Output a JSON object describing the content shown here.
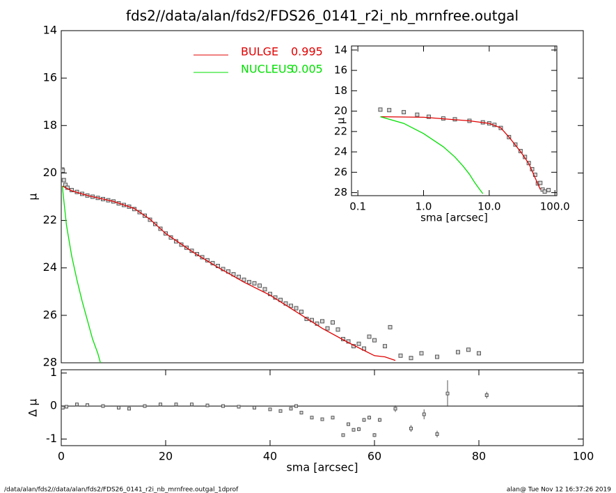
{
  "title": "fds2//data/alan/fds2/FDS26_0141_r2i_nb_mrnfree.outgal",
  "footer_left": "/data/alan/fds2//data/alan/fds2/FDS26_0141_r2i_nb_mrnfree.outgal_1dprof",
  "footer_right": "alan@  Tue Nov 12 16:37:26 2019",
  "chart_data": [
    {
      "type": "profile",
      "ylabel": "μ",
      "xlim": [
        0,
        100
      ],
      "ylim": [
        28,
        14
      ],
      "yticks": [
        14,
        16,
        18,
        20,
        22,
        24,
        26,
        28
      ],
      "legend": "upper center",
      "series": [
        {
          "style": "markers",
          "color": "#555555",
          "x": [
            0.2,
            0.3,
            0.5,
            0.8,
            1.2,
            2,
            3,
            4,
            5,
            6,
            7,
            8,
            9,
            10,
            11,
            12,
            13,
            14,
            15,
            16,
            17,
            18,
            19,
            20,
            21,
            22,
            23,
            24,
            25,
            26,
            27,
            28,
            29,
            30,
            31,
            32,
            33,
            34,
            35,
            36,
            37,
            38,
            39,
            40,
            41,
            42,
            43,
            44,
            45,
            46,
            47,
            48,
            49,
            50,
            51,
            52,
            53,
            54,
            55,
            56,
            57,
            58,
            59,
            60,
            62,
            63,
            65,
            67,
            69,
            72,
            76,
            78,
            80
          ],
          "values": [
            19.85,
            19.9,
            20.3,
            20.5,
            20.62,
            20.72,
            20.8,
            20.88,
            20.95,
            21.0,
            21.05,
            21.1,
            21.15,
            21.2,
            21.28,
            21.35,
            21.42,
            21.52,
            21.65,
            21.8,
            21.97,
            22.15,
            22.35,
            22.55,
            22.72,
            22.88,
            23.02,
            23.15,
            23.28,
            23.42,
            23.55,
            23.68,
            23.8,
            23.92,
            24.05,
            24.15,
            24.27,
            24.38,
            24.5,
            24.6,
            24.65,
            24.75,
            24.9,
            25.1,
            25.25,
            25.35,
            25.5,
            25.6,
            25.7,
            25.85,
            26.15,
            26.2,
            26.35,
            26.25,
            26.55,
            26.3,
            26.6,
            27.0,
            27.1,
            27.3,
            27.2,
            27.4,
            26.9,
            27.05,
            27.3,
            26.5,
            27.7,
            27.8,
            27.6,
            27.75,
            27.55,
            27.45,
            27.6
          ]
        },
        {
          "name": "BULGE",
          "fraction": 0.995,
          "style": "line",
          "color": "#e00000",
          "x": [
            0.2,
            2,
            5,
            10,
            14,
            17,
            20,
            25,
            30,
            35,
            40,
            45,
            50,
            55,
            60,
            62,
            64
          ],
          "values": [
            20.55,
            20.75,
            20.95,
            21.2,
            21.5,
            21.95,
            22.55,
            23.3,
            23.98,
            24.6,
            25.15,
            25.85,
            26.55,
            27.15,
            27.7,
            27.75,
            27.9
          ]
        },
        {
          "name": "NUCLEUS",
          "fraction": 0.005,
          "style": "line",
          "color": "#00e000",
          "x": [
            0.2,
            1,
            2,
            3,
            4,
            5,
            6,
            7,
            7.5
          ],
          "values": [
            20.55,
            22.2,
            23.5,
            24.5,
            25.4,
            26.2,
            27.0,
            27.6,
            28.0
          ]
        }
      ]
    },
    {
      "type": "residual",
      "ylabel": "Δ μ",
      "xlabel": "sma [arcsec]",
      "xlim": [
        0,
        100
      ],
      "ylim": [
        -1.2,
        1.1
      ],
      "xticks": [
        0,
        20,
        40,
        60,
        80,
        100
      ],
      "yticks": [
        -1,
        0,
        1
      ],
      "series": [
        {
          "style": "errorbars",
          "color": "#555555",
          "x": [
            0.3,
            1,
            3,
            5,
            8,
            11,
            13,
            16,
            19,
            22,
            25,
            28,
            31,
            34,
            37,
            40,
            42,
            44,
            45,
            46,
            48,
            50,
            52,
            54,
            55,
            56,
            57,
            58,
            59,
            60,
            61,
            64,
            67,
            69.5,
            72,
            74,
            81.5
          ],
          "values": [
            -0.05,
            -0.02,
            0.05,
            0.03,
            0.0,
            -0.05,
            -0.08,
            0.0,
            0.05,
            0.05,
            0.05,
            0.02,
            0.0,
            -0.02,
            -0.05,
            -0.1,
            -0.15,
            -0.08,
            0.0,
            -0.2,
            -0.35,
            -0.4,
            -0.35,
            -0.88,
            -0.55,
            -0.72,
            -0.7,
            -0.42,
            -0.35,
            -0.88,
            -0.42,
            -0.08,
            -0.68,
            -0.25,
            -0.85,
            0.38,
            0.33
          ],
          "errors": [
            0.02,
            0.02,
            0.02,
            0.02,
            0.02,
            0.02,
            0.02,
            0.02,
            0.02,
            0.02,
            0.02,
            0.02,
            0.02,
            0.02,
            0.02,
            0.03,
            0.03,
            0.03,
            0.03,
            0.03,
            0.04,
            0.04,
            0.05,
            0.05,
            0.05,
            0.05,
            0.06,
            0.06,
            0.06,
            0.06,
            0.06,
            0.1,
            0.1,
            0.15,
            0.1,
            0.4,
            0.1
          ]
        }
      ]
    },
    {
      "type": "profile",
      "ylabel": "μ",
      "xlabel": "sma [arcsec]",
      "xscale": "log",
      "xlim": [
        0.08,
        107
      ],
      "ylim": [
        28.3,
        13.6
      ],
      "xticks": [
        {
          "value": 0.1,
          "label": "0.1"
        },
        {
          "value": 1,
          "label": "1.0"
        },
        {
          "value": 10,
          "label": "10.0"
        },
        {
          "value": 100,
          "label": "100.0"
        }
      ],
      "yticks": [
        14,
        16,
        18,
        20,
        22,
        24,
        26,
        28
      ],
      "series": [
        {
          "style": "markers",
          "color": "#555555",
          "x": [
            0.22,
            0.3,
            0.5,
            0.8,
            1.2,
            2,
            3,
            5,
            8,
            10,
            12,
            15,
            20,
            25,
            30,
            35,
            40,
            45,
            50,
            55,
            60,
            65,
            70,
            80
          ],
          "values": [
            19.85,
            19.9,
            20.1,
            20.35,
            20.55,
            20.72,
            20.8,
            20.95,
            21.1,
            21.2,
            21.35,
            21.65,
            22.55,
            23.28,
            23.92,
            24.5,
            25.1,
            25.7,
            26.25,
            27.1,
            27.05,
            27.7,
            27.9,
            27.75
          ]
        },
        {
          "style": "line",
          "color": "#e00000",
          "x": [
            0.22,
            1,
            2,
            5,
            10,
            15,
            20,
            30,
            40,
            50,
            60
          ],
          "values": [
            20.55,
            20.6,
            20.75,
            20.95,
            21.2,
            21.65,
            22.55,
            23.98,
            25.15,
            26.55,
            27.7
          ]
        },
        {
          "style": "line",
          "color": "#00e000",
          "x": [
            0.22,
            0.5,
            1,
            2,
            3,
            4,
            5,
            6,
            7,
            8
          ],
          "values": [
            20.55,
            21.2,
            22.2,
            23.5,
            24.5,
            25.4,
            26.2,
            27.0,
            27.6,
            28.1
          ]
        }
      ]
    }
  ]
}
